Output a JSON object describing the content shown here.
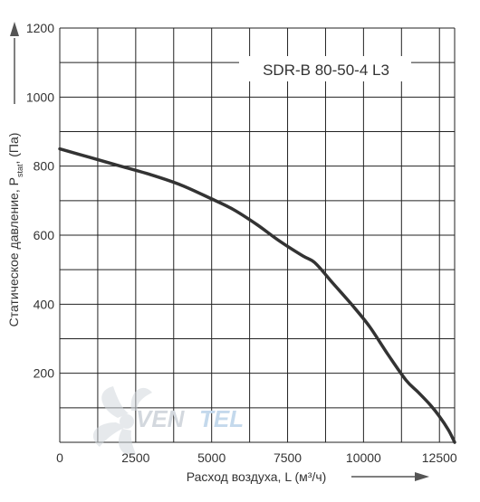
{
  "chart_data": {
    "type": "line",
    "title": "SDR-B 80-50-4 L3",
    "xlabel": "Расход воздуха, L (м³/ч)",
    "ylabel_main": "Статическое давление, P",
    "ylabel_sub": "stat",
    "ylabel_tail": ", (Па)",
    "xlim": [
      0,
      13000
    ],
    "ylim": [
      0,
      1200
    ],
    "x_ticks": [
      0,
      2500,
      5000,
      7500,
      10000,
      12500
    ],
    "y_ticks": [
      200,
      400,
      600,
      800,
      1000,
      1200
    ],
    "x_grid_step": 1250,
    "y_grid_step": 100,
    "grid": true,
    "series": [
      {
        "color": "#333333",
        "x": [
          0,
          1000,
          2000,
          3000,
          4000,
          5000,
          5700,
          6500,
          7200,
          8000,
          8400,
          9000,
          9600,
          10200,
          10800,
          11400,
          11800,
          12200,
          12500,
          12800,
          13000
        ],
        "y": [
          850,
          825,
          800,
          775,
          745,
          705,
          675,
          630,
          585,
          540,
          520,
          460,
          400,
          335,
          255,
          180,
          145,
          108,
          75,
          35,
          0
        ]
      }
    ]
  },
  "watermark": {
    "text_a": "VEN",
    "text_b": "TEL",
    "color_a": "#d3d8de",
    "color_b": "#c4d9ec"
  },
  "colors": {
    "grid": "#222222",
    "curve": "#333333",
    "axis_arrow": "#555555"
  }
}
